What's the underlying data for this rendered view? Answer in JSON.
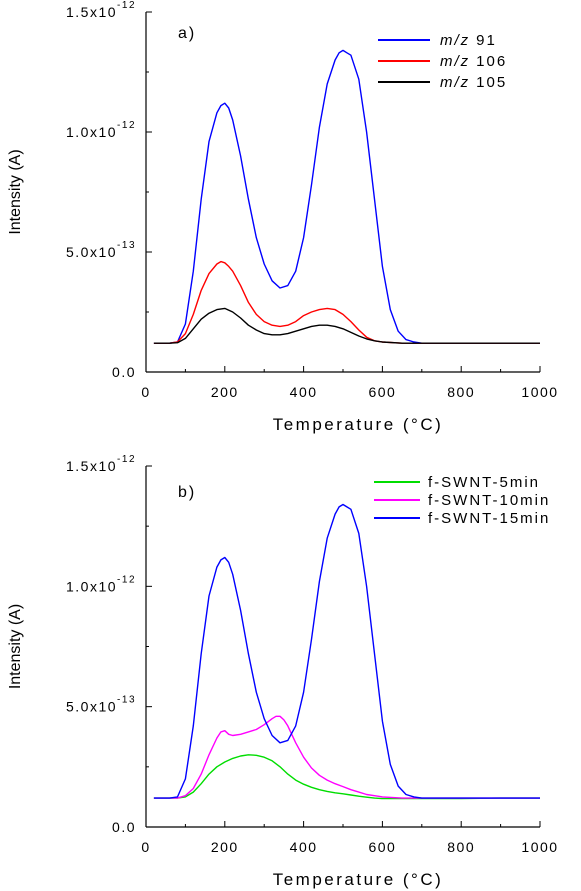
{
  "chart_data": [
    {
      "type": "line",
      "panel_label": "a)",
      "xlabel": "Temperature (°C)",
      "ylabel": "Intensity (A)",
      "xlim": [
        0,
        1000
      ],
      "ylim": [
        0,
        1.5e-12
      ],
      "x_ticks": [
        0,
        200,
        400,
        600,
        800,
        1000
      ],
      "x_tick_labels": [
        "0",
        "200",
        "400",
        "600",
        "800",
        "1000"
      ],
      "y_ticks": [
        0,
        5e-13,
        1e-12,
        1.5e-12
      ],
      "y_tick_labels": [
        {
          "mantissa": "0.0",
          "exp": ""
        },
        {
          "mantissa": "5.0x10",
          "exp": "-13"
        },
        {
          "mantissa": "1.0x10",
          "exp": "-12"
        },
        {
          "mantissa": "1.5x10",
          "exp": "-12"
        }
      ],
      "grid": false,
      "legend_position": "top-right",
      "series": [
        {
          "legend_prefix": "m/z",
          "legend_value": "91",
          "color": "#0000ff",
          "x": [
            20,
            60,
            80,
            100,
            120,
            140,
            160,
            180,
            190,
            200,
            210,
            220,
            240,
            260,
            280,
            300,
            320,
            340,
            360,
            380,
            400,
            420,
            440,
            460,
            480,
            490,
            500,
            510,
            520,
            540,
            560,
            580,
            600,
            620,
            640,
            660,
            680,
            700,
            750,
            800,
            850,
            900,
            950,
            1000
          ],
          "y": [
            1.2e-13,
            1.2e-13,
            1.25e-13,
            2e-13,
            4.2e-13,
            7.2e-13,
            9.6e-13,
            1.08e-12,
            1.11e-12,
            1.12e-12,
            1.1e-12,
            1.05e-12,
            9e-13,
            7.2e-13,
            5.6e-13,
            4.5e-13,
            3.8e-13,
            3.5e-13,
            3.6e-13,
            4.2e-13,
            5.6e-13,
            7.8e-13,
            1.02e-12,
            1.2e-12,
            1.3e-12,
            1.33e-12,
            1.34e-12,
            1.33e-12,
            1.32e-12,
            1.22e-12,
            1e-12,
            7.2e-13,
            4.4e-13,
            2.6e-13,
            1.7e-13,
            1.35e-13,
            1.25e-13,
            1.2e-13,
            1.2e-13,
            1.2e-13,
            1.2e-13,
            1.2e-13,
            1.2e-13,
            1.2e-13
          ]
        },
        {
          "legend_prefix": "m/z",
          "legend_value": "106",
          "color": "#ff0000",
          "x": [
            20,
            60,
            80,
            100,
            120,
            140,
            160,
            180,
            190,
            200,
            210,
            220,
            240,
            260,
            280,
            300,
            320,
            340,
            360,
            380,
            400,
            420,
            440,
            460,
            480,
            500,
            520,
            540,
            560,
            580,
            600,
            650,
            700,
            750,
            800,
            900,
            1000
          ],
          "y": [
            1.2e-13,
            1.2e-13,
            1.25e-13,
            1.6e-13,
            2.4e-13,
            3.4e-13,
            4.1e-13,
            4.5e-13,
            4.6e-13,
            4.55e-13,
            4.4e-13,
            4.2e-13,
            3.6e-13,
            2.9e-13,
            2.4e-13,
            2.1e-13,
            1.95e-13,
            1.9e-13,
            1.95e-13,
            2.1e-13,
            2.35e-13,
            2.5e-13,
            2.6e-13,
            2.65e-13,
            2.6e-13,
            2.4e-13,
            2.1e-13,
            1.75e-13,
            1.45e-13,
            1.3e-13,
            1.25e-13,
            1.2e-13,
            1.2e-13,
            1.2e-13,
            1.2e-13,
            1.2e-13,
            1.2e-13
          ]
        },
        {
          "legend_prefix": "m/z",
          "legend_value": "105",
          "color": "#000000",
          "x": [
            20,
            60,
            80,
            100,
            120,
            140,
            160,
            180,
            200,
            220,
            240,
            260,
            280,
            300,
            320,
            340,
            360,
            380,
            400,
            420,
            440,
            460,
            480,
            500,
            520,
            540,
            560,
            580,
            600,
            650,
            700,
            800,
            900,
            1000
          ],
          "y": [
            1.2e-13,
            1.2e-13,
            1.22e-13,
            1.4e-13,
            1.8e-13,
            2.2e-13,
            2.45e-13,
            2.6e-13,
            2.65e-13,
            2.5e-13,
            2.25e-13,
            1.95e-13,
            1.75e-13,
            1.6e-13,
            1.55e-13,
            1.55e-13,
            1.6e-13,
            1.7e-13,
            1.8e-13,
            1.9e-13,
            1.95e-13,
            1.95e-13,
            1.9e-13,
            1.8e-13,
            1.65e-13,
            1.5e-13,
            1.38e-13,
            1.3e-13,
            1.25e-13,
            1.2e-13,
            1.2e-13,
            1.2e-13,
            1.2e-13,
            1.2e-13
          ]
        }
      ]
    },
    {
      "type": "line",
      "panel_label": "b)",
      "xlabel": "Temperature (°C)",
      "ylabel": "Intensity (A)",
      "xlim": [
        0,
        1000
      ],
      "ylim": [
        0,
        1.5e-12
      ],
      "x_ticks": [
        0,
        200,
        400,
        600,
        800,
        1000
      ],
      "x_tick_labels": [
        "0",
        "200",
        "400",
        "600",
        "800",
        "1000"
      ],
      "y_ticks": [
        0,
        5e-13,
        1e-12,
        1.5e-12
      ],
      "y_tick_labels": [
        {
          "mantissa": "0.0",
          "exp": ""
        },
        {
          "mantissa": "5.0x10",
          "exp": "-13"
        },
        {
          "mantissa": "1.0x10",
          "exp": "-12"
        },
        {
          "mantissa": "1.5x10",
          "exp": "-12"
        }
      ],
      "grid": false,
      "legend_position": "top-right",
      "series": [
        {
          "name": "f-SWNT-5min",
          "color": "#00dd00",
          "x": [
            20,
            80,
            100,
            120,
            140,
            160,
            180,
            200,
            220,
            240,
            260,
            280,
            300,
            320,
            340,
            360,
            380,
            400,
            420,
            440,
            460,
            480,
            500,
            520,
            540,
            560,
            580,
            600,
            650,
            700,
            800,
            900,
            1000
          ],
          "y": [
            1.2e-13,
            1.2e-13,
            1.25e-13,
            1.45e-13,
            1.8e-13,
            2.2e-13,
            2.5e-13,
            2.7e-13,
            2.85e-13,
            2.95e-13,
            3e-13,
            2.98e-13,
            2.9e-13,
            2.75e-13,
            2.5e-13,
            2.2e-13,
            1.95e-13,
            1.78e-13,
            1.65e-13,
            1.55e-13,
            1.48e-13,
            1.42e-13,
            1.38e-13,
            1.33e-13,
            1.28e-13,
            1.24e-13,
            1.2e-13,
            1.18e-13,
            1.18e-13,
            1.18e-13,
            1.18e-13,
            1.2e-13,
            1.2e-13
          ]
        },
        {
          "name": "f-SWNT-10min",
          "color": "#ff00ff",
          "x": [
            20,
            80,
            100,
            120,
            140,
            160,
            180,
            190,
            200,
            210,
            220,
            240,
            260,
            280,
            300,
            320,
            330,
            340,
            350,
            360,
            380,
            400,
            420,
            440,
            460,
            480,
            500,
            520,
            540,
            560,
            580,
            600,
            650,
            700,
            800,
            900,
            1000
          ],
          "y": [
            1.2e-13,
            1.2e-13,
            1.3e-13,
            1.6e-13,
            2.2e-13,
            3e-13,
            3.7e-13,
            3.95e-13,
            4e-13,
            3.85e-13,
            3.8e-13,
            3.85e-13,
            3.95e-13,
            4.05e-13,
            4.25e-13,
            4.5e-13,
            4.6e-13,
            4.6e-13,
            4.45e-13,
            4.2e-13,
            3.5e-13,
            2.9e-13,
            2.45e-13,
            2.15e-13,
            1.95e-13,
            1.8e-13,
            1.68e-13,
            1.55e-13,
            1.45e-13,
            1.35e-13,
            1.3e-13,
            1.25e-13,
            1.2e-13,
            1.2e-13,
            1.2e-13,
            1.2e-13,
            1.2e-13
          ]
        },
        {
          "name": "f-SWNT-15min",
          "color": "#0000ff",
          "x": [
            20,
            60,
            80,
            100,
            120,
            140,
            160,
            180,
            190,
            200,
            210,
            220,
            240,
            260,
            280,
            300,
            320,
            340,
            360,
            380,
            400,
            420,
            440,
            460,
            480,
            490,
            500,
            510,
            520,
            540,
            560,
            580,
            600,
            620,
            640,
            660,
            680,
            700,
            750,
            800,
            850,
            900,
            950,
            1000
          ],
          "y": [
            1.2e-13,
            1.2e-13,
            1.25e-13,
            2e-13,
            4.2e-13,
            7.2e-13,
            9.6e-13,
            1.08e-12,
            1.11e-12,
            1.12e-12,
            1.1e-12,
            1.05e-12,
            9e-13,
            7.2e-13,
            5.6e-13,
            4.5e-13,
            3.8e-13,
            3.5e-13,
            3.6e-13,
            4.2e-13,
            5.6e-13,
            7.8e-13,
            1.02e-12,
            1.2e-12,
            1.3e-12,
            1.33e-12,
            1.34e-12,
            1.33e-12,
            1.32e-12,
            1.22e-12,
            1e-12,
            7.2e-13,
            4.4e-13,
            2.6e-13,
            1.7e-13,
            1.35e-13,
            1.25e-13,
            1.2e-13,
            1.2e-13,
            1.2e-13,
            1.2e-13,
            1.2e-13,
            1.2e-13,
            1.2e-13
          ]
        }
      ]
    }
  ]
}
